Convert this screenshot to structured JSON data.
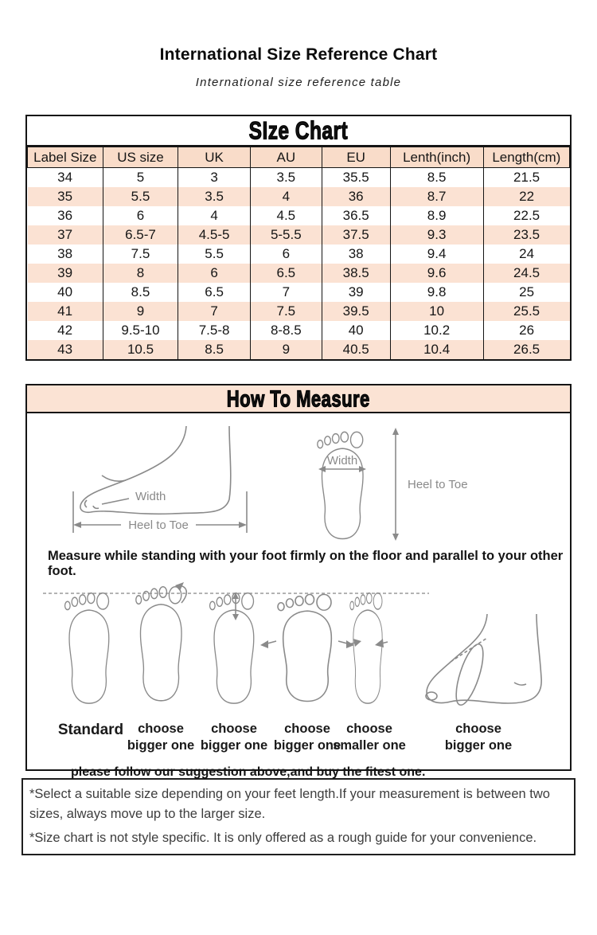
{
  "page": {
    "title": "International Size Reference Chart",
    "subtitle": "International size reference table"
  },
  "size_chart": {
    "title": "SIze Chart",
    "headers": [
      "Label Size",
      "US size",
      "UK",
      "AU",
      "EU",
      "Lenth(inch)",
      "Length(cm)"
    ],
    "rows": [
      [
        "34",
        "5",
        "3",
        "3.5",
        "35.5",
        "8.5",
        "21.5"
      ],
      [
        "35",
        "5.5",
        "3.5",
        "4",
        "36",
        "8.7",
        "22"
      ],
      [
        "36",
        "6",
        "4",
        "4.5",
        "36.5",
        "8.9",
        "22.5"
      ],
      [
        "37",
        "6.5-7",
        "4.5-5",
        "5-5.5",
        "37.5",
        "9.3",
        "23.5"
      ],
      [
        "38",
        "7.5",
        "5.5",
        "6",
        "38",
        "9.4",
        "24"
      ],
      [
        "39",
        "8",
        "6",
        "6.5",
        "38.5",
        "9.6",
        "24.5"
      ],
      [
        "40",
        "8.5",
        "6.5",
        "7",
        "39",
        "9.8",
        "25"
      ],
      [
        "41",
        "9",
        "7",
        "7.5",
        "39.5",
        "10",
        "25.5"
      ],
      [
        "42",
        "9.5-10",
        "7.5-8",
        "8-8.5",
        "40",
        "10.2",
        "26"
      ],
      [
        "43",
        "10.5",
        "8.5",
        "9",
        "40.5",
        "10.4",
        "26.5"
      ]
    ]
  },
  "how_to_measure": {
    "title": "How To Measure",
    "width_label": "Width",
    "heel_to_toe_label": "Heel to Toe",
    "instruction": "Measure while standing with your foot firmly on the floor and parallel to your other foot.",
    "fit_labels": [
      {
        "line1": "Standard",
        "line2": ""
      },
      {
        "line1": "choose",
        "line2": "bigger one"
      },
      {
        "line1": "choose",
        "line2": "bigger one"
      },
      {
        "line1": "choose",
        "line2": "bigger one"
      },
      {
        "line1": "choose",
        "line2": "smaller one"
      },
      {
        "line1": "choose",
        "line2": "bigger one"
      }
    ],
    "suggestion": "please follow our suggestion above,and buy the fitest one."
  },
  "notes": {
    "lines": [
      "*Select a suitable size depending on your feet length.If your measurement is between two sizes, always move up to the larger size.",
      "*Size chart is not style specific. It is only offered as a rough guide for your convenience."
    ]
  },
  "colors": {
    "row_pink": "#fbe2d3",
    "header_pink": "#f9dcc9",
    "section_pink": "#fbe3d4",
    "border": "#151515"
  }
}
